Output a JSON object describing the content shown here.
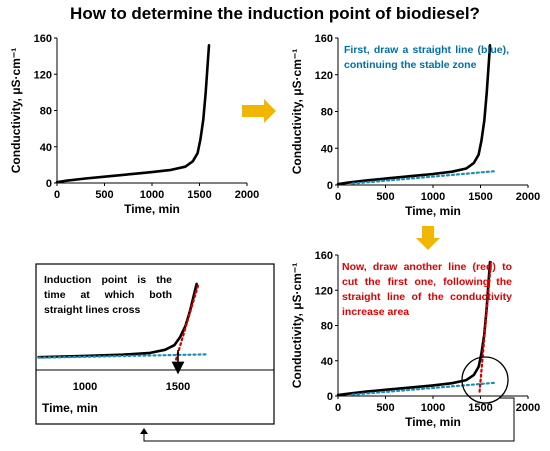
{
  "title": "How to determine the induction point of biodiesel?",
  "steps": {
    "blue_note": "First, draw a straight line (blue), continuing the stable zone",
    "red_note": "Now, draw another line (red) to cut the first one, following the straight line of the conductivity increase area",
    "induction_note": "Induction point is the time at which both straight lines cross"
  },
  "colors": {
    "curve": "#000000",
    "blue_line": "#1f8fb0",
    "red_line": "#d00000",
    "arrow": "#f2b600",
    "blue_text": "#0070a8",
    "red_text": "#e00000"
  },
  "chart_data": [
    {
      "type": "line",
      "xlabel": "Time, min",
      "ylabel": "Conductivity, μS·cm⁻¹",
      "xlim": [
        0,
        2000
      ],
      "ylim": [
        0,
        160
      ],
      "xticks": [
        0,
        500,
        1000,
        1500,
        2000
      ],
      "yticks": [
        0,
        40,
        80,
        120,
        160
      ],
      "series": [
        {
          "values_x": [
            0,
            100,
            300,
            500,
            800,
            1000,
            1200,
            1350,
            1430,
            1480,
            1510,
            1540,
            1565,
            1585,
            1600
          ],
          "values_y": [
            1,
            2.5,
            5,
            7,
            10,
            12,
            14.5,
            18,
            24,
            33,
            48,
            70,
            100,
            130,
            152
          ]
        }
      ]
    },
    {
      "type": "line",
      "xlabel": "Time, min",
      "ylabel": "Conductivity, μS·cm⁻¹",
      "xlim": [
        0,
        2000
      ],
      "ylim": [
        0,
        160
      ],
      "xticks": [
        0,
        500,
        1000,
        1500,
        2000
      ],
      "yticks": [
        0,
        40,
        80,
        120,
        160
      ],
      "series": [
        {
          "values_x": [
            0,
            100,
            300,
            500,
            800,
            1000,
            1200,
            1350,
            1430,
            1480,
            1510,
            1540,
            1565,
            1585,
            1600
          ],
          "values_y": [
            1,
            2.5,
            5,
            7,
            10,
            12,
            14.5,
            18,
            24,
            33,
            48,
            70,
            100,
            130,
            152
          ]
        },
        {
          "values_x": [
            150,
            1650
          ],
          "values_y": [
            1.5,
            15
          ]
        }
      ]
    },
    {
      "type": "line",
      "xlabel": "Time, min",
      "ylabel": "Conductivity, μS·cm⁻¹",
      "xlim": [
        0,
        2000
      ],
      "ylim": [
        0,
        160
      ],
      "xticks": [
        0,
        500,
        1000,
        1500,
        2000
      ],
      "yticks": [
        0,
        40,
        80,
        120,
        160
      ],
      "series": [
        {
          "values_x": [
            0,
            100,
            300,
            500,
            800,
            1000,
            1200,
            1350,
            1430,
            1480,
            1510,
            1540,
            1565,
            1585,
            1600
          ],
          "values_y": [
            1,
            2.5,
            5,
            7,
            10,
            12,
            14.5,
            18,
            24,
            33,
            48,
            70,
            100,
            130,
            152
          ]
        },
        {
          "values_x": [
            150,
            1650
          ],
          "values_y": [
            1.5,
            15
          ]
        },
        {
          "values_x": [
            1490,
            1610
          ],
          "values_y": [
            5,
            152
          ]
        }
      ]
    },
    {
      "type": "line",
      "xlabel": "Time, min",
      "xticks": [
        1000,
        1500
      ],
      "series": [
        {
          "values_x": [
            750,
            1000,
            1200,
            1350,
            1430,
            1480,
            1510,
            1540,
            1565,
            1585,
            1600
          ],
          "values_y": [
            9.5,
            12,
            14.5,
            18,
            24,
            33,
            48,
            70,
            100,
            130,
            152
          ]
        },
        {
          "values_x": [
            750,
            1650
          ],
          "values_y": [
            8.5,
            15
          ]
        },
        {
          "values_x": [
            1490,
            1610
          ],
          "values_y": [
            5,
            152
          ]
        }
      ]
    }
  ]
}
